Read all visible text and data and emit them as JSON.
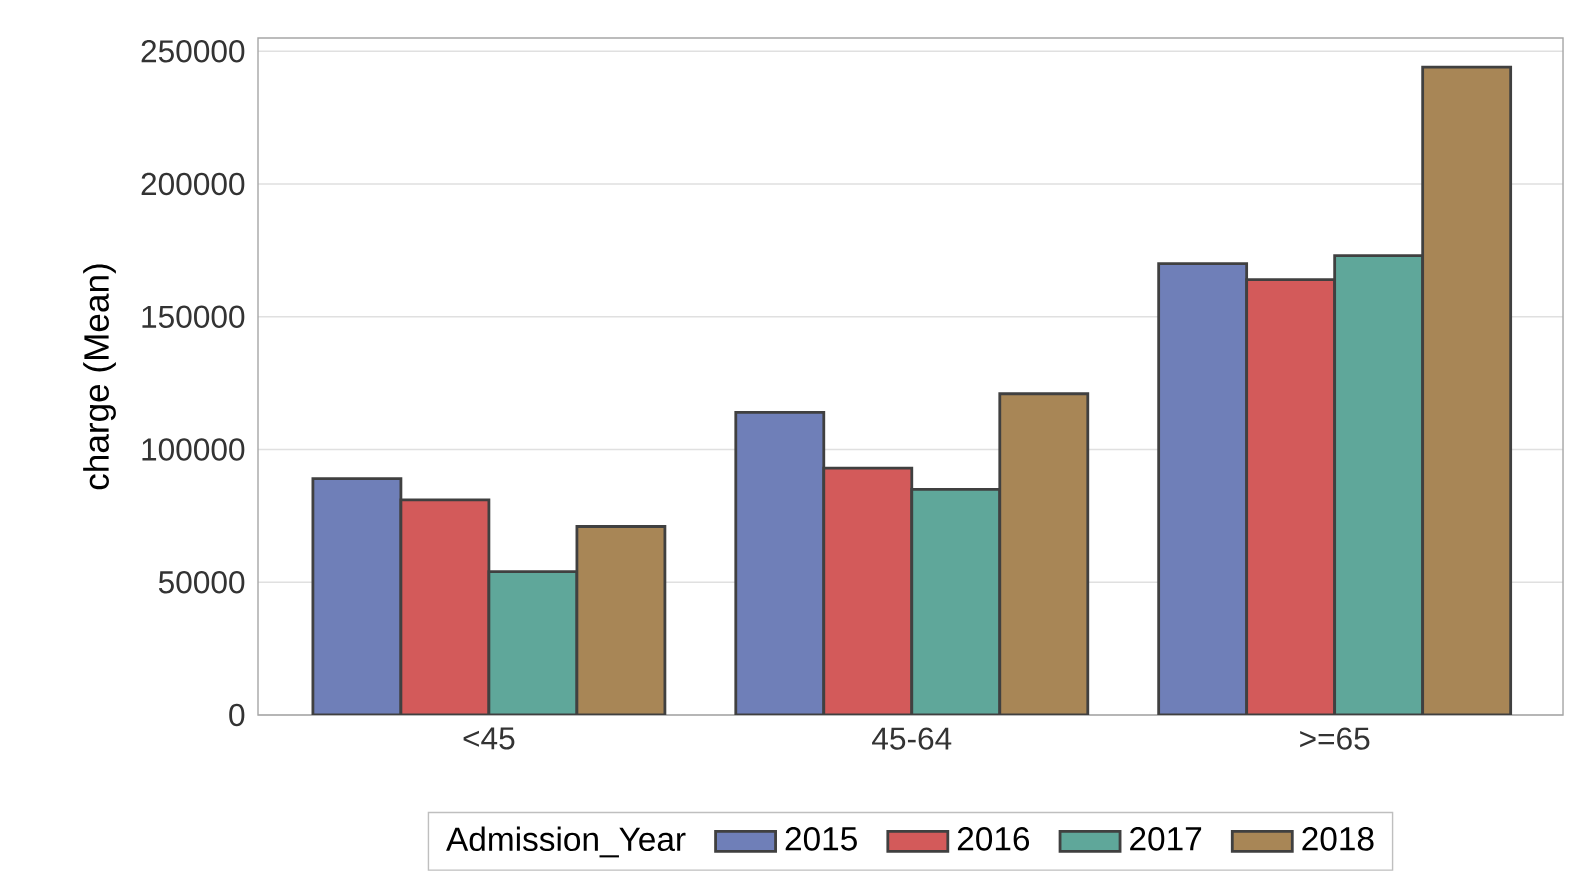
{
  "chart_data": {
    "type": "bar",
    "ylabel": "charge (Mean)",
    "legend_title": "Admission_Year",
    "categories": [
      "<45",
      "45-64",
      ">=65"
    ],
    "series": [
      {
        "name": "2015",
        "color": "#6f7fb8",
        "values": [
          89000,
          114000,
          170000
        ]
      },
      {
        "name": "2016",
        "color": "#d35a5a",
        "values": [
          81000,
          93000,
          164000
        ]
      },
      {
        "name": "2017",
        "color": "#5fa79a",
        "values": [
          54000,
          85000,
          173000
        ]
      },
      {
        "name": "2018",
        "color": "#a88656",
        "values": [
          71000,
          121000,
          244000
        ]
      }
    ],
    "ylim": [
      0,
      255000
    ],
    "yticks": [
      0,
      50000,
      100000,
      150000,
      200000,
      250000
    ],
    "grid": "y",
    "legend": "bottom"
  }
}
